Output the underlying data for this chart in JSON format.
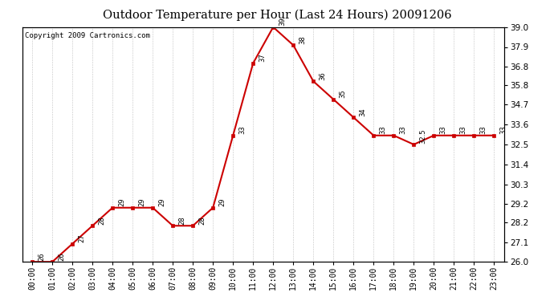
{
  "title": "Outdoor Temperature per Hour (Last 24 Hours) 20091206",
  "copyright": "Copyright 2009 Cartronics.com",
  "hours": [
    "00:00",
    "01:00",
    "02:00",
    "03:00",
    "04:00",
    "05:00",
    "06:00",
    "07:00",
    "08:00",
    "09:00",
    "10:00",
    "11:00",
    "12:00",
    "13:00",
    "14:00",
    "15:00",
    "16:00",
    "17:00",
    "18:00",
    "19:00",
    "20:00",
    "21:00",
    "22:00",
    "23:00"
  ],
  "values": [
    26,
    26,
    27,
    28,
    29,
    29,
    29,
    28,
    28,
    29,
    33,
    37,
    39,
    38,
    36,
    35,
    34,
    33,
    33,
    32.5,
    33,
    33,
    33,
    33
  ],
  "ylim_min": 26.0,
  "ylim_max": 39.0,
  "yticks": [
    26.0,
    27.1,
    28.2,
    29.2,
    30.3,
    31.4,
    32.5,
    33.6,
    34.7,
    35.8,
    36.8,
    37.9,
    39.0
  ],
  "ytick_labels": [
    "26.0",
    "27.1",
    "28.2",
    "29.2",
    "30.3",
    "31.4",
    "32.5",
    "33.6",
    "34.7",
    "35.8",
    "36.8",
    "37.9",
    "39.0"
  ],
  "line_color": "#cc0000",
  "marker_color": "#cc0000",
  "grid_color": "#aaaaaa",
  "bg_color": "#ffffff",
  "fig_bg_color": "#ffffff",
  "annot_labels": [
    "26",
    "26",
    "27",
    "28",
    "29",
    "29",
    "29",
    "28",
    "28",
    "29",
    "33",
    "37",
    "39",
    "38",
    "36",
    "35",
    "34",
    "33",
    "33",
    "32.5",
    "33",
    "33",
    "33",
    "33"
  ]
}
